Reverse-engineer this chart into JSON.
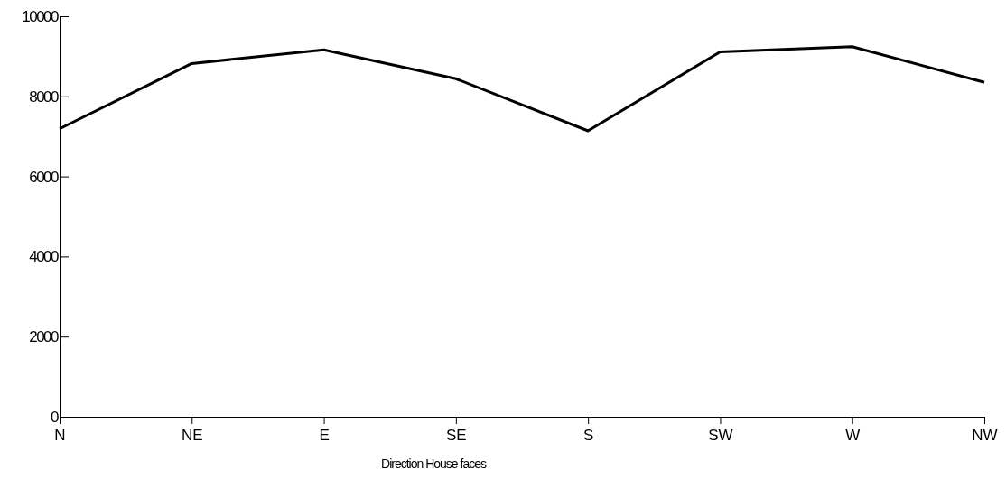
{
  "chart_data": {
    "type": "line",
    "xlabel": "Direction House faces",
    "categories": [
      "N",
      "NE",
      "E",
      "SE",
      "S",
      "SW",
      "W",
      "NW"
    ],
    "series": [
      {
        "color": "#000000",
        "values": [
          7190,
          8820,
          9160,
          8440,
          7140,
          9110,
          9240,
          8350
        ]
      }
    ],
    "ylim": [
      0,
      10000
    ],
    "yticks": [
      0,
      2000,
      4000,
      6000,
      8000,
      10000
    ],
    "grid": false,
    "marker": "none",
    "line_style": "solid"
  }
}
